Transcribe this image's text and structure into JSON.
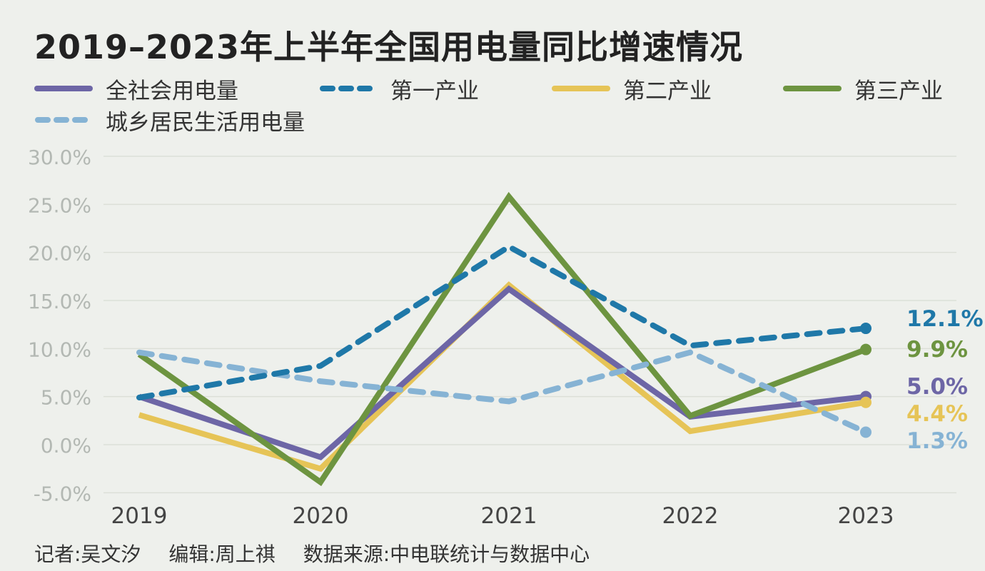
{
  "title": "2019–2023年上半年全国用电量同比增速情况",
  "footer": {
    "reporter": "记者:吴文汐",
    "editor": "编辑:周上祺",
    "source": "数据来源:中电联统计与数据中心"
  },
  "chart_data": {
    "type": "line",
    "title": "2019–2023年上半年全国用电量同比增速情况",
    "xlabel": "",
    "ylabel": "",
    "categories": [
      "2019",
      "2020",
      "2021",
      "2022",
      "2023"
    ],
    "ylim": [
      -5,
      30
    ],
    "yticks": [
      "30.0%",
      "25.0%",
      "20.0%",
      "15.0%",
      "10.0%",
      "5.0%",
      "0.0%",
      "-5.0%"
    ],
    "ytick_values": [
      30,
      25,
      20,
      15,
      10,
      5,
      0,
      -5
    ],
    "grid": true,
    "legend_position": "top",
    "series": [
      {
        "name": "全社会用电量",
        "values": [
          5.0,
          -1.3,
          16.2,
          2.9,
          5.0
        ],
        "color": "#6d66a6",
        "dashed": false,
        "label": "5.0%"
      },
      {
        "name": "第一产业",
        "values": [
          4.9,
          8.2,
          20.6,
          10.3,
          12.1
        ],
        "color": "#1f78a8",
        "dashed": true,
        "label": "12.1%"
      },
      {
        "name": "第二产业",
        "values": [
          3.1,
          -2.5,
          16.6,
          1.4,
          4.4
        ],
        "color": "#e6c457",
        "dashed": false,
        "label": "4.4%"
      },
      {
        "name": "第三产业",
        "values": [
          9.4,
          -3.9,
          25.8,
          3.0,
          9.9
        ],
        "color": "#6d9440",
        "dashed": false,
        "label": "9.9%"
      },
      {
        "name": "城乡居民生活用电量",
        "values": [
          9.6,
          6.6,
          4.5,
          9.6,
          1.3
        ],
        "color": "#86b3d4",
        "dashed": true,
        "label": "1.3%"
      }
    ]
  }
}
